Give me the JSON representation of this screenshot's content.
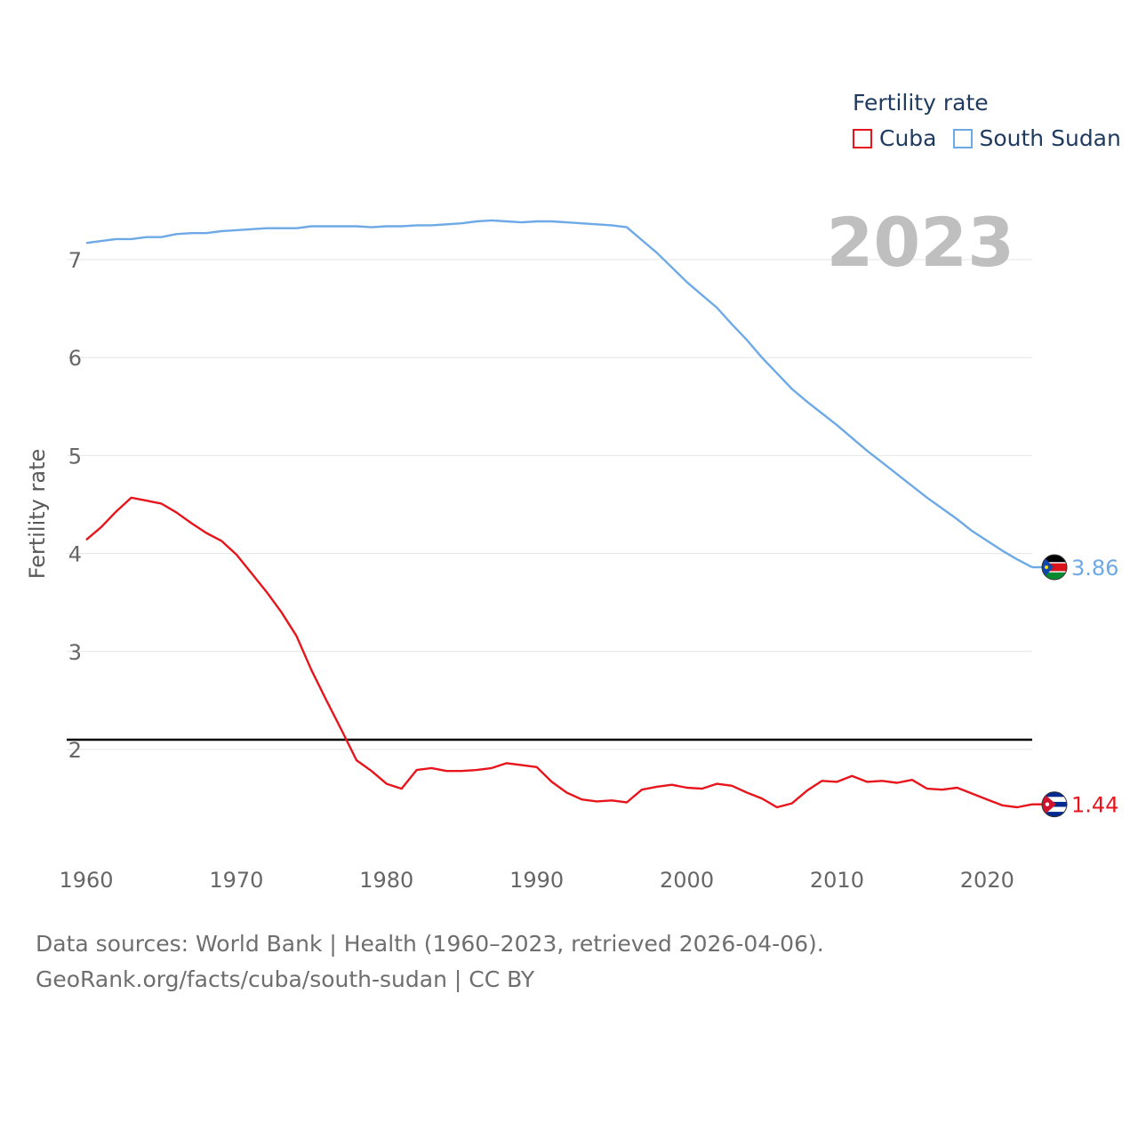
{
  "legend": {
    "title": "Fertility rate",
    "items": [
      {
        "label": "Cuba",
        "color": "#e8141b"
      },
      {
        "label": "South Sudan",
        "color": "#6da9e6"
      }
    ]
  },
  "year_label": "2023",
  "footer": {
    "line1": "Data sources: World Bank | Health (1960–2023, retrieved 2026-04-06).",
    "line2": "GeoRank.org/facts/cuba/south-sudan | CC BY"
  },
  "chart_data": {
    "type": "line",
    "title": "",
    "xlabel": "",
    "ylabel": "Fertility rate",
    "xlim": [
      1960,
      2023
    ],
    "ylim": [
      1,
      7.6
    ],
    "xticks": [
      1960,
      1970,
      1980,
      1990,
      2000,
      2010,
      2020
    ],
    "yticks": [
      2,
      3,
      4,
      5,
      6,
      7
    ],
    "reference_line": {
      "y": 2.1,
      "color": "#000000"
    },
    "x": [
      1960,
      1961,
      1962,
      1963,
      1964,
      1965,
      1966,
      1967,
      1968,
      1969,
      1970,
      1971,
      1972,
      1973,
      1974,
      1975,
      1976,
      1977,
      1978,
      1979,
      1980,
      1981,
      1982,
      1983,
      1984,
      1985,
      1986,
      1987,
      1988,
      1989,
      1990,
      1991,
      1992,
      1993,
      1994,
      1995,
      1996,
      1997,
      1998,
      1999,
      2000,
      2001,
      2002,
      2003,
      2004,
      2005,
      2006,
      2007,
      2008,
      2009,
      2010,
      2011,
      2012,
      2013,
      2014,
      2015,
      2016,
      2017,
      2018,
      2019,
      2020,
      2021,
      2022,
      2023
    ],
    "series": [
      {
        "name": "Cuba",
        "color": "#e8141b",
        "end_label": "1.44",
        "values": [
          4.14,
          4.27,
          4.43,
          4.57,
          4.54,
          4.51,
          4.42,
          4.31,
          4.21,
          4.13,
          3.99,
          3.8,
          3.61,
          3.4,
          3.16,
          2.81,
          2.5,
          2.2,
          1.89,
          1.78,
          1.65,
          1.6,
          1.79,
          1.81,
          1.78,
          1.78,
          1.79,
          1.81,
          1.86,
          1.84,
          1.82,
          1.67,
          1.56,
          1.49,
          1.47,
          1.48,
          1.46,
          1.59,
          1.62,
          1.64,
          1.61,
          1.6,
          1.65,
          1.63,
          1.56,
          1.5,
          1.41,
          1.45,
          1.58,
          1.68,
          1.67,
          1.73,
          1.67,
          1.68,
          1.66,
          1.69,
          1.6,
          1.59,
          1.61,
          1.55,
          1.49,
          1.43,
          1.41,
          1.44
        ]
      },
      {
        "name": "South Sudan",
        "color": "#6da9e6",
        "end_label": "3.86",
        "values": [
          7.17,
          7.19,
          7.21,
          7.21,
          7.23,
          7.23,
          7.26,
          7.27,
          7.27,
          7.29,
          7.3,
          7.31,
          7.32,
          7.32,
          7.32,
          7.34,
          7.34,
          7.34,
          7.34,
          7.33,
          7.34,
          7.34,
          7.35,
          7.35,
          7.36,
          7.37,
          7.39,
          7.4,
          7.39,
          7.38,
          7.39,
          7.39,
          7.38,
          7.37,
          7.36,
          7.35,
          7.33,
          7.2,
          7.07,
          6.92,
          6.77,
          6.64,
          6.51,
          6.34,
          6.18,
          6.0,
          5.84,
          5.68,
          5.55,
          5.43,
          5.31,
          5.18,
          5.05,
          4.93,
          4.81,
          4.69,
          4.57,
          4.46,
          4.35,
          4.23,
          4.13,
          4.03,
          3.94,
          3.86
        ]
      }
    ]
  }
}
